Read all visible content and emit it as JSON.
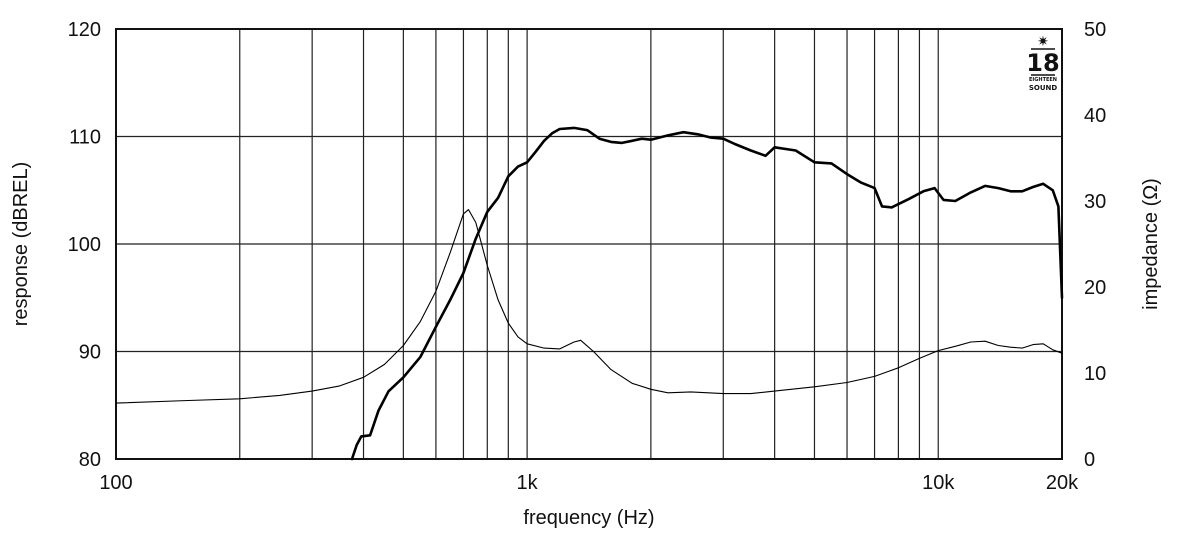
{
  "chart_data": {
    "type": "line",
    "xlabel": "frequency (Hz)",
    "ylabel": "response (dBREL)",
    "y2label": "impedance (Ω)",
    "x_scale": "log",
    "xlim": [
      100,
      20000
    ],
    "ylim": [
      80,
      120
    ],
    "y2lim": [
      0,
      50
    ],
    "grid": true,
    "x_ticks": [
      {
        "value": 100,
        "label": "100"
      },
      {
        "value": 1000,
        "label": "1k"
      },
      {
        "value": 10000,
        "label": "10k"
      },
      {
        "value": 20000,
        "label": "20k"
      }
    ],
    "y_ticks": [
      {
        "value": 80,
        "label": "80"
      },
      {
        "value": 90,
        "label": "90"
      },
      {
        "value": 100,
        "label": "100"
      },
      {
        "value": 110,
        "label": "110"
      },
      {
        "value": 120,
        "label": "120"
      }
    ],
    "y2_ticks": [
      {
        "value": 0,
        "label": "0"
      },
      {
        "value": 10,
        "label": "10"
      },
      {
        "value": 20,
        "label": "20"
      },
      {
        "value": 30,
        "label": "30"
      },
      {
        "value": 40,
        "label": "40"
      },
      {
        "value": 50,
        "label": "50"
      }
    ],
    "series": [
      {
        "axis": "left",
        "style": "thick",
        "points": [
          [
            375,
            80
          ],
          [
            385,
            81.3
          ],
          [
            395,
            82.1
          ],
          [
            415,
            82.2
          ],
          [
            435,
            84.5
          ],
          [
            460,
            86.3
          ],
          [
            500,
            87.6
          ],
          [
            550,
            89.5
          ],
          [
            600,
            92.3
          ],
          [
            650,
            94.8
          ],
          [
            700,
            97.3
          ],
          [
            750,
            100.5
          ],
          [
            800,
            103.0
          ],
          [
            850,
            104.3
          ],
          [
            900,
            106.3
          ],
          [
            950,
            107.2
          ],
          [
            1000,
            107.6
          ],
          [
            1050,
            108.6
          ],
          [
            1100,
            109.6
          ],
          [
            1150,
            110.3
          ],
          [
            1200,
            110.7
          ],
          [
            1300,
            110.8
          ],
          [
            1400,
            110.6
          ],
          [
            1500,
            109.8
          ],
          [
            1600,
            109.5
          ],
          [
            1700,
            109.4
          ],
          [
            1800,
            109.6
          ],
          [
            1900,
            109.8
          ],
          [
            2000,
            109.7
          ],
          [
            2200,
            110.1
          ],
          [
            2400,
            110.4
          ],
          [
            2600,
            110.2
          ],
          [
            2800,
            109.9
          ],
          [
            3000,
            109.8
          ],
          [
            3200,
            109.3
          ],
          [
            3500,
            108.7
          ],
          [
            3800,
            108.2
          ],
          [
            3900,
            108.6
          ],
          [
            4000,
            109.0
          ],
          [
            4500,
            108.7
          ],
          [
            5000,
            107.6
          ],
          [
            5500,
            107.5
          ],
          [
            6000,
            106.5
          ],
          [
            6500,
            105.7
          ],
          [
            7000,
            105.2
          ],
          [
            7300,
            103.5
          ],
          [
            7700,
            103.4
          ],
          [
            8500,
            104.2
          ],
          [
            9200,
            104.9
          ],
          [
            9800,
            105.2
          ],
          [
            10300,
            104.1
          ],
          [
            11000,
            104.0
          ],
          [
            12000,
            104.8
          ],
          [
            13000,
            105.4
          ],
          [
            14000,
            105.2
          ],
          [
            15000,
            104.9
          ],
          [
            16000,
            104.9
          ],
          [
            17000,
            105.3
          ],
          [
            18000,
            105.6
          ],
          [
            19000,
            105.0
          ],
          [
            19600,
            103.5
          ],
          [
            20000,
            95.0
          ]
        ]
      },
      {
        "axis": "right",
        "style": "thin",
        "points": [
          [
            100,
            6.5
          ],
          [
            150,
            6.8
          ],
          [
            200,
            7.0
          ],
          [
            250,
            7.4
          ],
          [
            300,
            7.9
          ],
          [
            350,
            8.5
          ],
          [
            400,
            9.5
          ],
          [
            450,
            11.0
          ],
          [
            500,
            13.2
          ],
          [
            550,
            16.0
          ],
          [
            600,
            19.5
          ],
          [
            650,
            24.0
          ],
          [
            700,
            28.5
          ],
          [
            720,
            29.0
          ],
          [
            750,
            27.5
          ],
          [
            800,
            22.5
          ],
          [
            850,
            18.5
          ],
          [
            900,
            15.8
          ],
          [
            950,
            14.2
          ],
          [
            1000,
            13.4
          ],
          [
            1100,
            12.9
          ],
          [
            1200,
            12.8
          ],
          [
            1300,
            13.6
          ],
          [
            1350,
            13.8
          ],
          [
            1450,
            12.5
          ],
          [
            1600,
            10.4
          ],
          [
            1800,
            8.8
          ],
          [
            2000,
            8.1
          ],
          [
            2200,
            7.7
          ],
          [
            2500,
            7.8
          ],
          [
            3000,
            7.6
          ],
          [
            3500,
            7.6
          ],
          [
            4000,
            7.9
          ],
          [
            5000,
            8.4
          ],
          [
            6000,
            8.9
          ],
          [
            7000,
            9.6
          ],
          [
            8000,
            10.6
          ],
          [
            9000,
            11.7
          ],
          [
            10000,
            12.6
          ],
          [
            11000,
            13.1
          ],
          [
            12000,
            13.6
          ],
          [
            13000,
            13.7
          ],
          [
            14000,
            13.2
          ],
          [
            15000,
            13.0
          ],
          [
            16000,
            12.9
          ],
          [
            17000,
            13.3
          ],
          [
            18000,
            13.4
          ],
          [
            19000,
            12.7
          ],
          [
            20000,
            12.3
          ]
        ]
      }
    ]
  }
}
